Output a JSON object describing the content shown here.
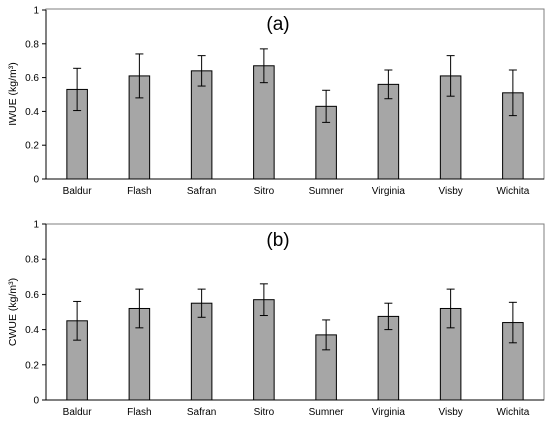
{
  "chart_data": [
    {
      "type": "bar",
      "panel_label": "(a)",
      "ylabel": "IWUE (kg/m³)",
      "xlabel": "",
      "categories": [
        "Baldur",
        "Flash",
        "Safran",
        "Sitro",
        "Sumner",
        "Virginia",
        "Visby",
        "Wichita"
      ],
      "values": [
        0.53,
        0.61,
        0.64,
        0.67,
        0.43,
        0.56,
        0.61,
        0.51
      ],
      "error": [
        0.125,
        0.13,
        0.09,
        0.1,
        0.095,
        0.085,
        0.12,
        0.135
      ],
      "ylim": [
        0,
        1
      ],
      "yticks": [
        "0",
        "0.2",
        "0.4",
        "0.6",
        "0.8",
        "1"
      ],
      "grid": false,
      "bar_color": "#a6a6a6"
    },
    {
      "type": "bar",
      "panel_label": "(b)",
      "ylabel": "CWUE (kg/m³)",
      "xlabel": "",
      "categories": [
        "Baldur",
        "Flash",
        "Safran",
        "Sitro",
        "Sumner",
        "Virginia",
        "Visby",
        "Wichita"
      ],
      "values": [
        0.45,
        0.52,
        0.55,
        0.57,
        0.37,
        0.475,
        0.52,
        0.44
      ],
      "error": [
        0.11,
        0.11,
        0.08,
        0.09,
        0.085,
        0.075,
        0.11,
        0.115
      ],
      "ylim": [
        0,
        1
      ],
      "yticks": [
        "0",
        "0.2",
        "0.4",
        "0.6",
        "0.8",
        "1"
      ],
      "grid": false,
      "bar_color": "#a6a6a6"
    }
  ]
}
